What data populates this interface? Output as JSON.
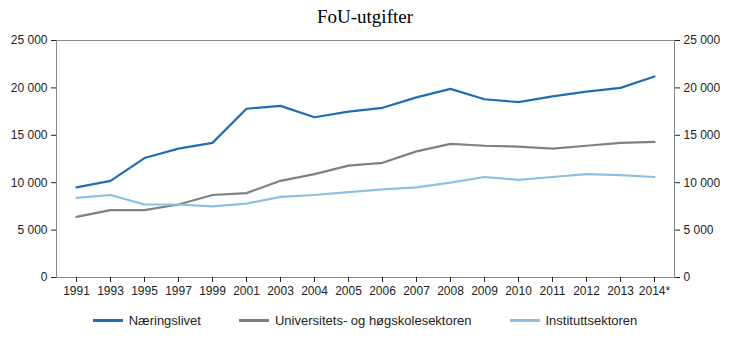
{
  "chart_data": {
    "type": "line",
    "title": "FoU-utgifter",
    "categories": [
      "1991",
      "1993",
      "1995",
      "1997",
      "1999",
      "2001",
      "2003",
      "2004",
      "2005",
      "2006",
      "2007",
      "2008",
      "2009",
      "2010",
      "2011",
      "2012",
      "2013",
      "2014*"
    ],
    "series": [
      {
        "name": "Næringslivet",
        "color": "#1f6db3",
        "values": [
          9500,
          10200,
          12600,
          13600,
          14200,
          17800,
          18100,
          16900,
          17500,
          17900,
          19000,
          19900,
          18800,
          18500,
          19100,
          19600,
          20000,
          21200
        ]
      },
      {
        "name": "Universitets- og høgskolesektoren",
        "color": "#808080",
        "values": [
          6400,
          7100,
          7100,
          7700,
          8700,
          8900,
          10200,
          10900,
          11800,
          12100,
          13300,
          14100,
          13900,
          13800,
          13600,
          13900,
          14200,
          14300
        ]
      },
      {
        "name": "Instituttsektoren",
        "color": "#8fbfe0",
        "values": [
          8400,
          8700,
          7700,
          7700,
          7500,
          7800,
          8500,
          8700,
          9000,
          9300,
          9500,
          10000,
          10600,
          10300,
          10600,
          10900,
          10800,
          10600
        ]
      }
    ],
    "ylim": [
      0,
      25000
    ],
    "yticks": [
      0,
      {
        "value": 5000,
        "label": "5 000"
      },
      {
        "value": 10000,
        "label": "10 000"
      },
      {
        "value": 15000,
        "label": "15 000"
      },
      {
        "value": 20000,
        "label": "20 000"
      },
      {
        "value": 25000,
        "label": "25 000"
      }
    ],
    "y2lim": [
      0,
      25000
    ],
    "y2ticks": [
      0,
      {
        "value": 5000,
        "label": "5 000"
      },
      {
        "value": 10000,
        "label": "10 000"
      },
      {
        "value": 15000,
        "label": "15 000"
      },
      {
        "value": 20000,
        "label": "20 000"
      },
      {
        "value": 25000,
        "label": "25 000"
      }
    ],
    "grid": false,
    "legend": "bottom"
  }
}
